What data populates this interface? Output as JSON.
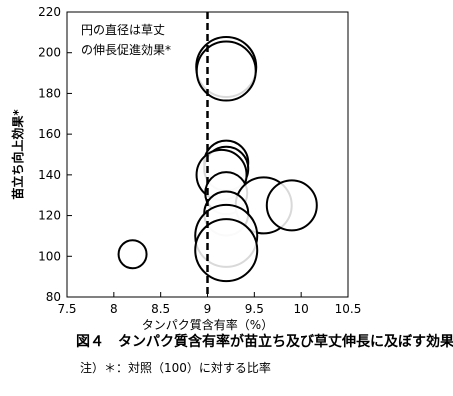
{
  "chart_data": {
    "type": "bubble",
    "annotation": [
      "円の直径は草丈",
      "の伸長促進効果*"
    ],
    "xlabel": "タンパク質含有率（%）",
    "ylabel": "苗立ち向上効果*",
    "caption": "図４　タンパク質含有率が苗立ち及び草丈伸長に及ぼす効果",
    "note": "注）＊：対照（100）に対する比率",
    "x": [
      8.2,
      9.2,
      9.2,
      9.2,
      9.2,
      9.15,
      9.2,
      9.6,
      9.9,
      9.2,
      9.2,
      9.2
    ],
    "values": [
      101,
      193,
      191,
      146,
      143,
      140,
      131,
      125,
      125,
      121,
      110,
      103
    ],
    "sizes": [
      56,
      120,
      118,
      88,
      88,
      100,
      84,
      112,
      100,
      88,
      124,
      124
    ],
    "color": "#000000",
    "vline": 9,
    "xlim": [
      7.5,
      10.5
    ],
    "xticks": [
      7.5,
      8,
      8.5,
      9,
      9.5,
      10,
      10.5
    ],
    "ylim": [
      80,
      220
    ],
    "yticks": [
      80,
      100,
      120,
      140,
      160,
      180,
      200,
      220
    ]
  }
}
